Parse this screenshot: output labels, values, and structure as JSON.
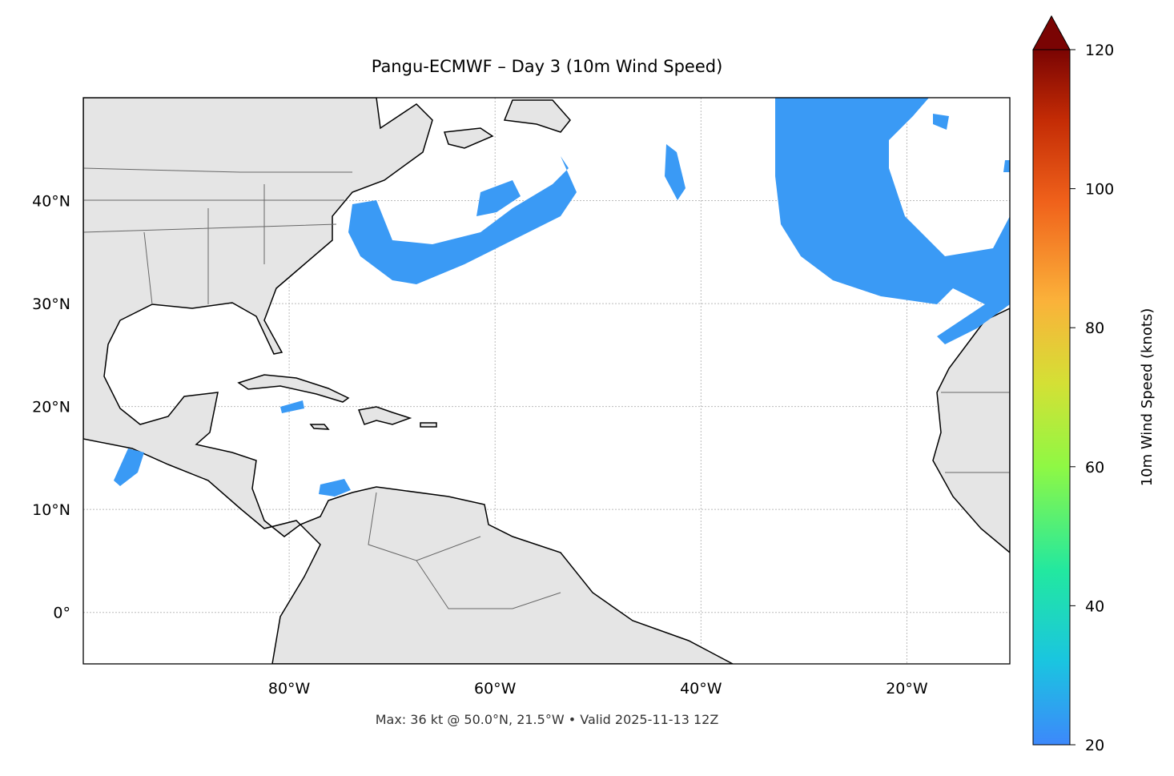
{
  "chart_data": {
    "type": "map",
    "title": "Pangu-ECMWF – Day 3 (10m Wind Speed)",
    "footnote": "Max: 36 kt @ 50.0°N, 21.5°W • Valid 2025-11-13 12Z",
    "xlim": [
      -100,
      -10
    ],
    "ylim": [
      -5,
      50
    ],
    "xticks": [
      {
        "value": -80,
        "label": "80°W"
      },
      {
        "value": -60,
        "label": "60°W"
      },
      {
        "value": -40,
        "label": "40°W"
      },
      {
        "value": -20,
        "label": "20°W"
      }
    ],
    "yticks": [
      {
        "value": 0,
        "label": "0°"
      },
      {
        "value": 10,
        "label": "10°N"
      },
      {
        "value": 20,
        "label": "20°N"
      },
      {
        "value": 30,
        "label": "30°N"
      },
      {
        "value": 40,
        "label": "40°N"
      }
    ],
    "grid": true,
    "colorbar": {
      "label": "10m Wind Speed (knots)",
      "lim": [
        20,
        120
      ],
      "ticks": [
        20,
        40,
        60,
        80,
        100,
        120
      ]
    }
  }
}
